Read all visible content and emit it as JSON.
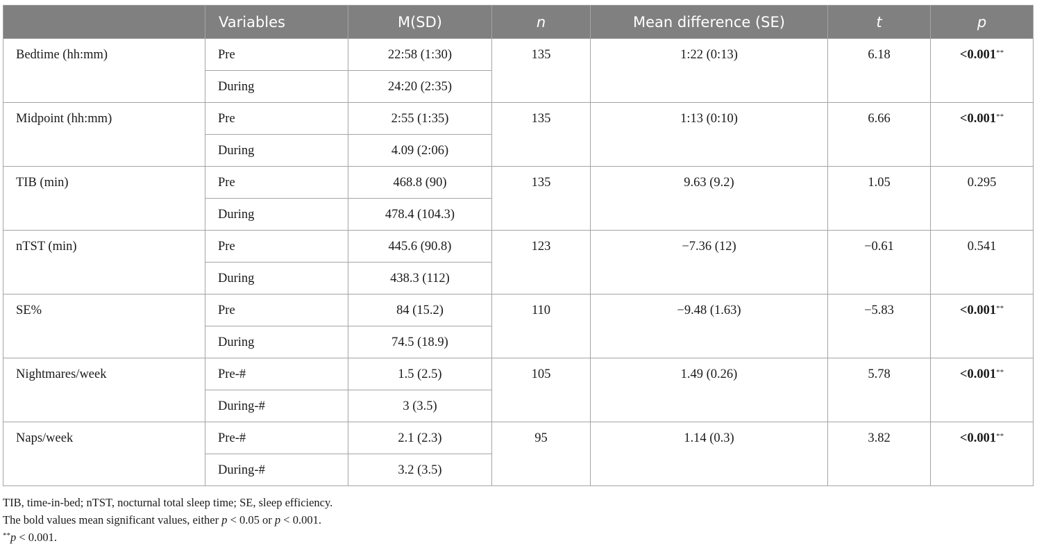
{
  "table": {
    "headers": {
      "blank": "",
      "variables": "Variables",
      "msd": "M(SD)",
      "n": "n",
      "mean_diff": "Mean difference (SE)",
      "t": "t",
      "p": "p"
    },
    "rows": [
      {
        "variable": "Bedtime (hh:mm)",
        "pre_label": "Pre",
        "pre_msd": "22:58 (1:30)",
        "during_label": "During",
        "during_msd": "24:20 (2:35)",
        "n": "135",
        "mean_diff": "1:22 (0:13)",
        "t": "6.18",
        "p": "<0.001",
        "p_mark": "**",
        "significant": true
      },
      {
        "variable": "Midpoint (hh:mm)",
        "pre_label": "Pre",
        "pre_msd": "2:55 (1:35)",
        "during_label": "During",
        "during_msd": "4.09 (2:06)",
        "n": "135",
        "mean_diff": "1:13 (0:10)",
        "t": "6.66",
        "p": "<0.001",
        "p_mark": "**",
        "significant": true
      },
      {
        "variable": "TIB (min)",
        "pre_label": "Pre",
        "pre_msd": "468.8 (90)",
        "during_label": "During",
        "during_msd": "478.4 (104.3)",
        "n": "135",
        "mean_diff": "9.63 (9.2)",
        "t": "1.05",
        "p": "0.295",
        "p_mark": "",
        "significant": false
      },
      {
        "variable": "nTST (min)",
        "pre_label": "Pre",
        "pre_msd": "445.6 (90.8)",
        "during_label": "During",
        "during_msd": "438.3 (112)",
        "n": "123",
        "mean_diff": "−7.36 (12)",
        "t": "−0.61",
        "p": "0.541",
        "p_mark": "",
        "significant": false
      },
      {
        "variable": "SE%",
        "pre_label": "Pre",
        "pre_msd": "84 (15.2)",
        "during_label": "During",
        "during_msd": "74.5 (18.9)",
        "n": "110",
        "mean_diff": "−9.48 (1.63)",
        "t": "−5.83",
        "p": "<0.001",
        "p_mark": "**",
        "significant": true
      },
      {
        "variable": "Nightmares/week",
        "pre_label": "Pre-#",
        "pre_msd": "1.5 (2.5)",
        "during_label": "During-#",
        "during_msd": "3 (3.5)",
        "n": "105",
        "mean_diff": "1.49 (0.26)",
        "t": "5.78",
        "p": "<0.001",
        "p_mark": "**",
        "significant": true
      },
      {
        "variable": "Naps/week",
        "pre_label": "Pre-#",
        "pre_msd": "2.1 (2.3)",
        "during_label": "During-#",
        "during_msd": "3.2 (3.5)",
        "n": "95",
        "mean_diff": "1.14 (0.3)",
        "t": "3.82",
        "p": "<0.001",
        "p_mark": "**",
        "significant": true
      }
    ]
  },
  "notes": {
    "abbrev": "TIB, time-in-bed; nTST, nocturnal total sleep time; SE, sleep efficiency.",
    "bold_prefix": "The bold values mean significant values, either ",
    "bold_p1": "p",
    "bold_mid1": " < 0.05 or ",
    "bold_p2": "p",
    "bold_mid2": " < 0.001.",
    "star_mark": "**",
    "star_p": "p",
    "star_rest": " < 0.001."
  },
  "colors": {
    "header_bg": "#808080",
    "header_text": "#ffffff",
    "border": "#a4a4a4",
    "body_text": "#1a1a1a"
  }
}
